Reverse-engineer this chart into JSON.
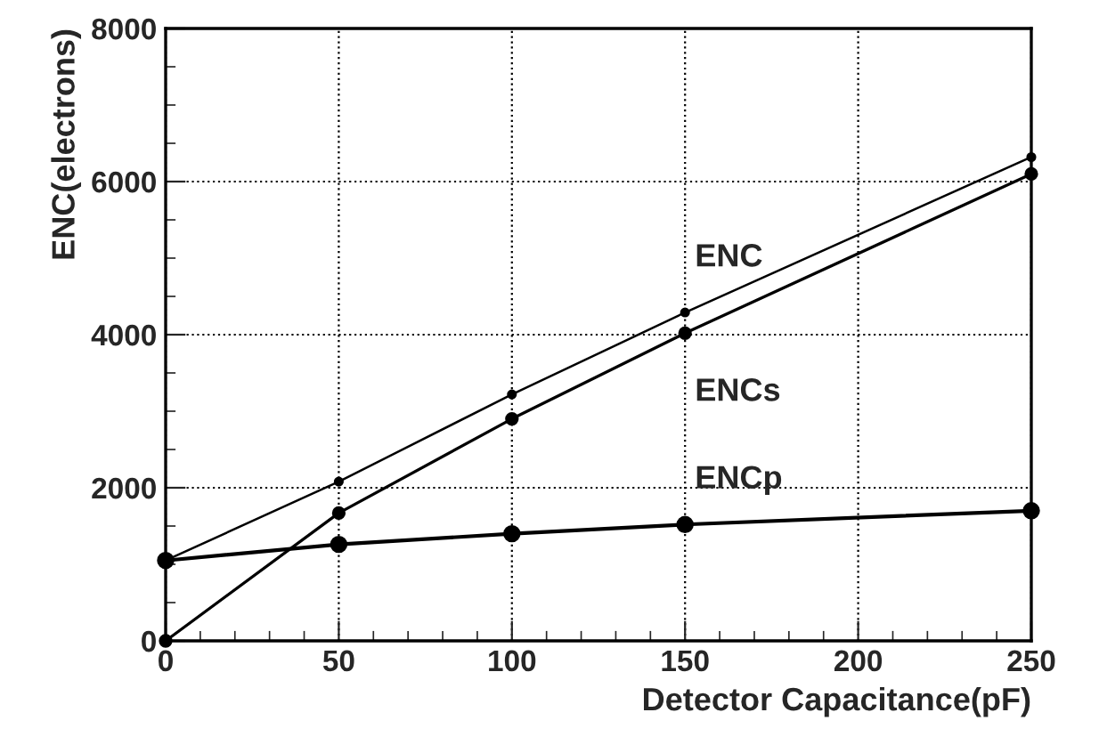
{
  "chart_data": {
    "type": "line",
    "xlabel": "Detector Capacitance(pF)",
    "ylabel": "ENC(electrons)",
    "x": [
      0,
      50,
      100,
      150,
      250
    ],
    "series": [
      {
        "name": "ENC",
        "color": "#000000",
        "values": [
          1050,
          2080,
          3220,
          4290,
          6320
        ]
      },
      {
        "name": "ENCs",
        "color": "#000000",
        "values": [
          0,
          1670,
          2900,
          4020,
          6100
        ]
      },
      {
        "name": "ENCp",
        "color": "#000000",
        "values": [
          1050,
          1260,
          1400,
          1520,
          1700
        ]
      }
    ],
    "xlim": [
      0,
      250
    ],
    "xticks": [
      0,
      50,
      100,
      150,
      200,
      250
    ],
    "ylim": [
      0,
      8000
    ],
    "yticks": [
      0,
      2000,
      4000,
      6000,
      8000
    ],
    "grid": true,
    "marker": "circle",
    "line_style": "solid",
    "legend": false
  }
}
